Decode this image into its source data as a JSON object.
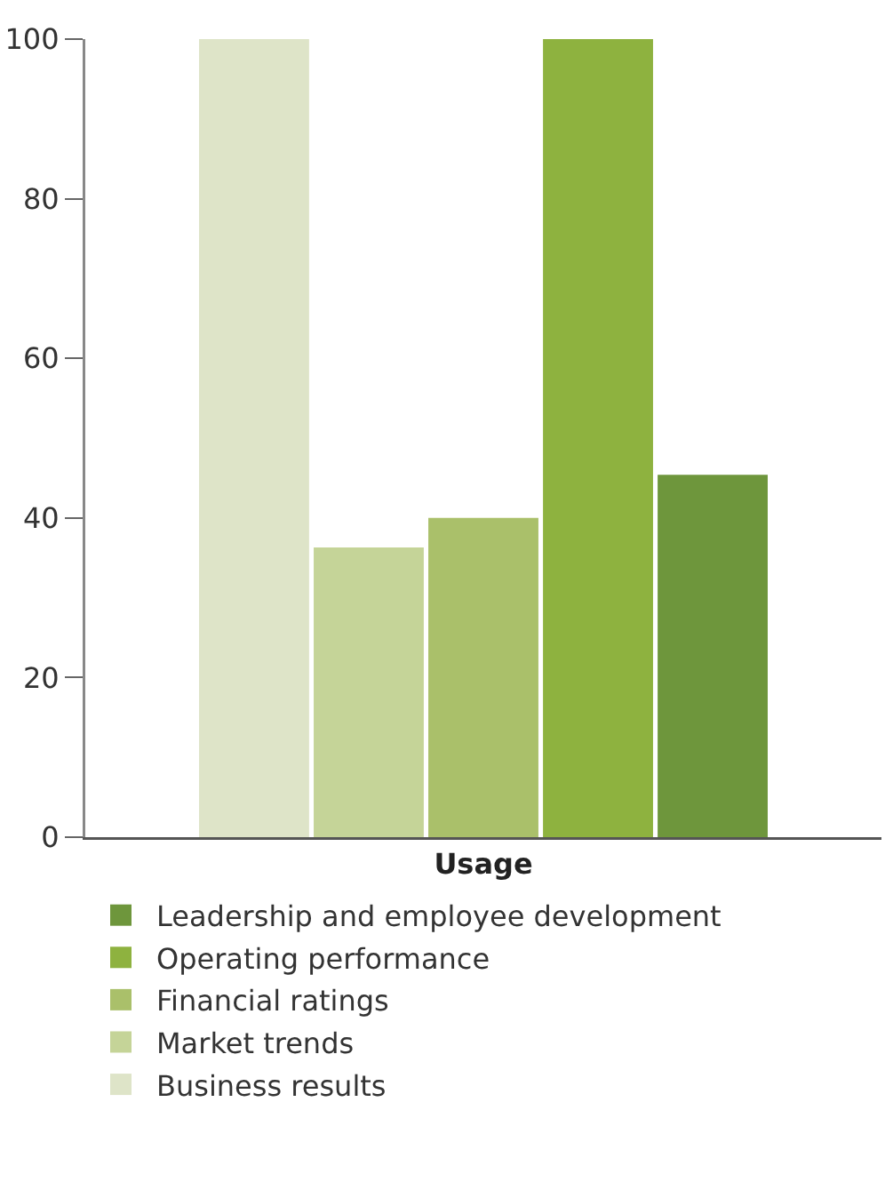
{
  "chart_data": {
    "type": "bar",
    "categories": [
      "Usage"
    ],
    "series": [
      {
        "name": "Business results",
        "color": "#dee4c8",
        "values": [
          100
        ]
      },
      {
        "name": "Market trends",
        "color": "#c5d498",
        "values": [
          36.3
        ]
      },
      {
        "name": "Financial ratings",
        "color": "#aac06a",
        "values": [
          40
        ]
      },
      {
        "name": "Operating performance",
        "color": "#8eb23f",
        "values": [
          100
        ]
      },
      {
        "name": "Leadership and employee development",
        "color": "#6e963c",
        "values": [
          45.4
        ]
      }
    ],
    "ylim": [
      0,
      100
    ],
    "yticks": [
      0,
      20,
      40,
      60,
      80,
      100
    ],
    "grid": false,
    "legend": "bottom"
  }
}
